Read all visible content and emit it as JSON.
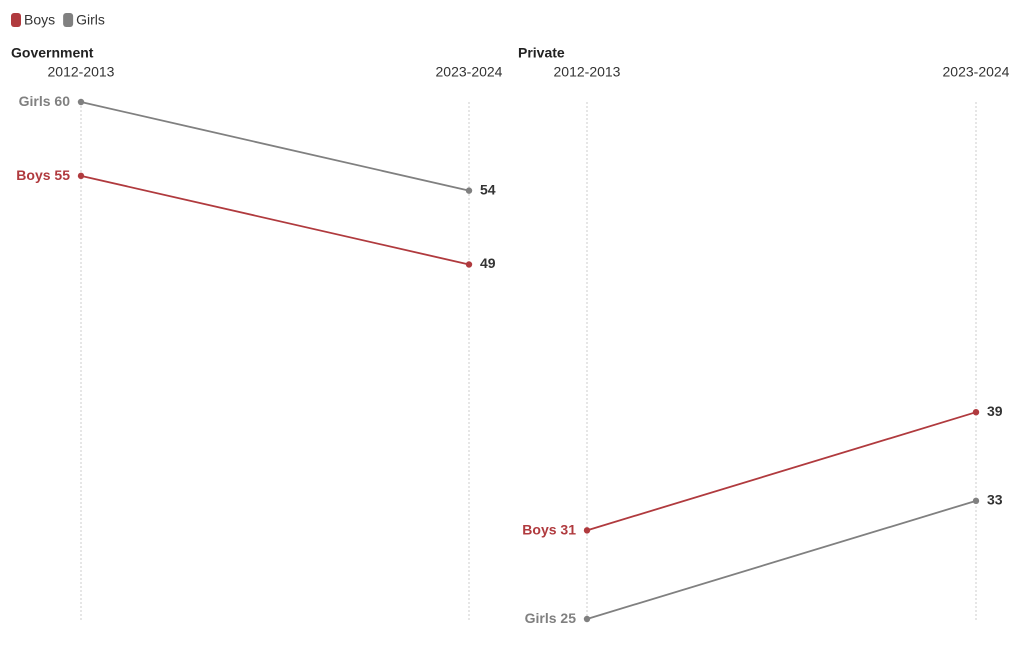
{
  "chart_data": [
    {
      "type": "slope",
      "title": "Government",
      "categories": [
        "2012-2013",
        "2023-2024"
      ],
      "series": [
        {
          "name": "Boys",
          "color": "#b03a3e",
          "values": [
            55,
            49
          ]
        },
        {
          "name": "Girls",
          "color": "#808080",
          "values": [
            60,
            54
          ]
        }
      ],
      "ylim": [
        25,
        60
      ]
    },
    {
      "type": "slope",
      "title": "Private",
      "categories": [
        "2012-2013",
        "2023-2024"
      ],
      "series": [
        {
          "name": "Boys",
          "color": "#b03a3e",
          "values": [
            31,
            39
          ]
        },
        {
          "name": "Girls",
          "color": "#808080",
          "values": [
            25,
            33
          ]
        }
      ],
      "ylim": [
        25,
        60
      ]
    }
  ]
}
